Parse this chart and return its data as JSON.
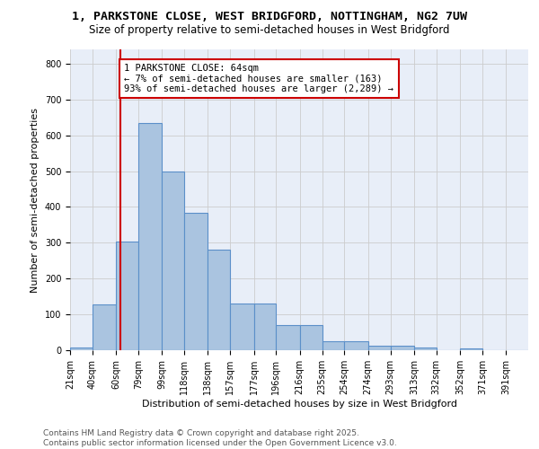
{
  "title1": "1, PARKSTONE CLOSE, WEST BRIDGFORD, NOTTINGHAM, NG2 7UW",
  "title2": "Size of property relative to semi-detached houses in West Bridgford",
  "xlabel": "Distribution of semi-detached houses by size in West Bridgford",
  "ylabel": "Number of semi-detached properties",
  "annotation_title": "1 PARKSTONE CLOSE: 64sqm",
  "annotation_line1": "← 7% of semi-detached houses are smaller (163)",
  "annotation_line2": "93% of semi-detached houses are larger (2,289) →",
  "footer1": "Contains HM Land Registry data © Crown copyright and database right 2025.",
  "footer2": "Contains public sector information licensed under the Open Government Licence v3.0.",
  "bar_edges": [
    21,
    40,
    60,
    79,
    99,
    118,
    138,
    157,
    177,
    196,
    216,
    235,
    254,
    274,
    293,
    313,
    332,
    352,
    371,
    391,
    410
  ],
  "bar_heights": [
    8,
    128,
    303,
    635,
    500,
    383,
    280,
    130,
    130,
    70,
    70,
    25,
    25,
    12,
    12,
    8,
    0,
    5,
    0,
    0
  ],
  "bar_color": "#aac4e0",
  "bar_edgecolor": "#5b8fc9",
  "bar_linewidth": 0.8,
  "vline_x": 64,
  "vline_color": "#cc0000",
  "vline_linewidth": 1.5,
  "annotation_box_edgecolor": "#cc0000",
  "annotation_box_facecolor": "white",
  "ylim": [
    0,
    840
  ],
  "yticks": [
    0,
    100,
    200,
    300,
    400,
    500,
    600,
    700,
    800
  ],
  "grid_color": "#cccccc",
  "bg_color": "#e8eef8",
  "title1_fontsize": 9.5,
  "title2_fontsize": 8.5,
  "xlabel_fontsize": 8,
  "ylabel_fontsize": 8,
  "tick_fontsize": 7,
  "annotation_fontsize": 7.5,
  "footer_fontsize": 6.5
}
